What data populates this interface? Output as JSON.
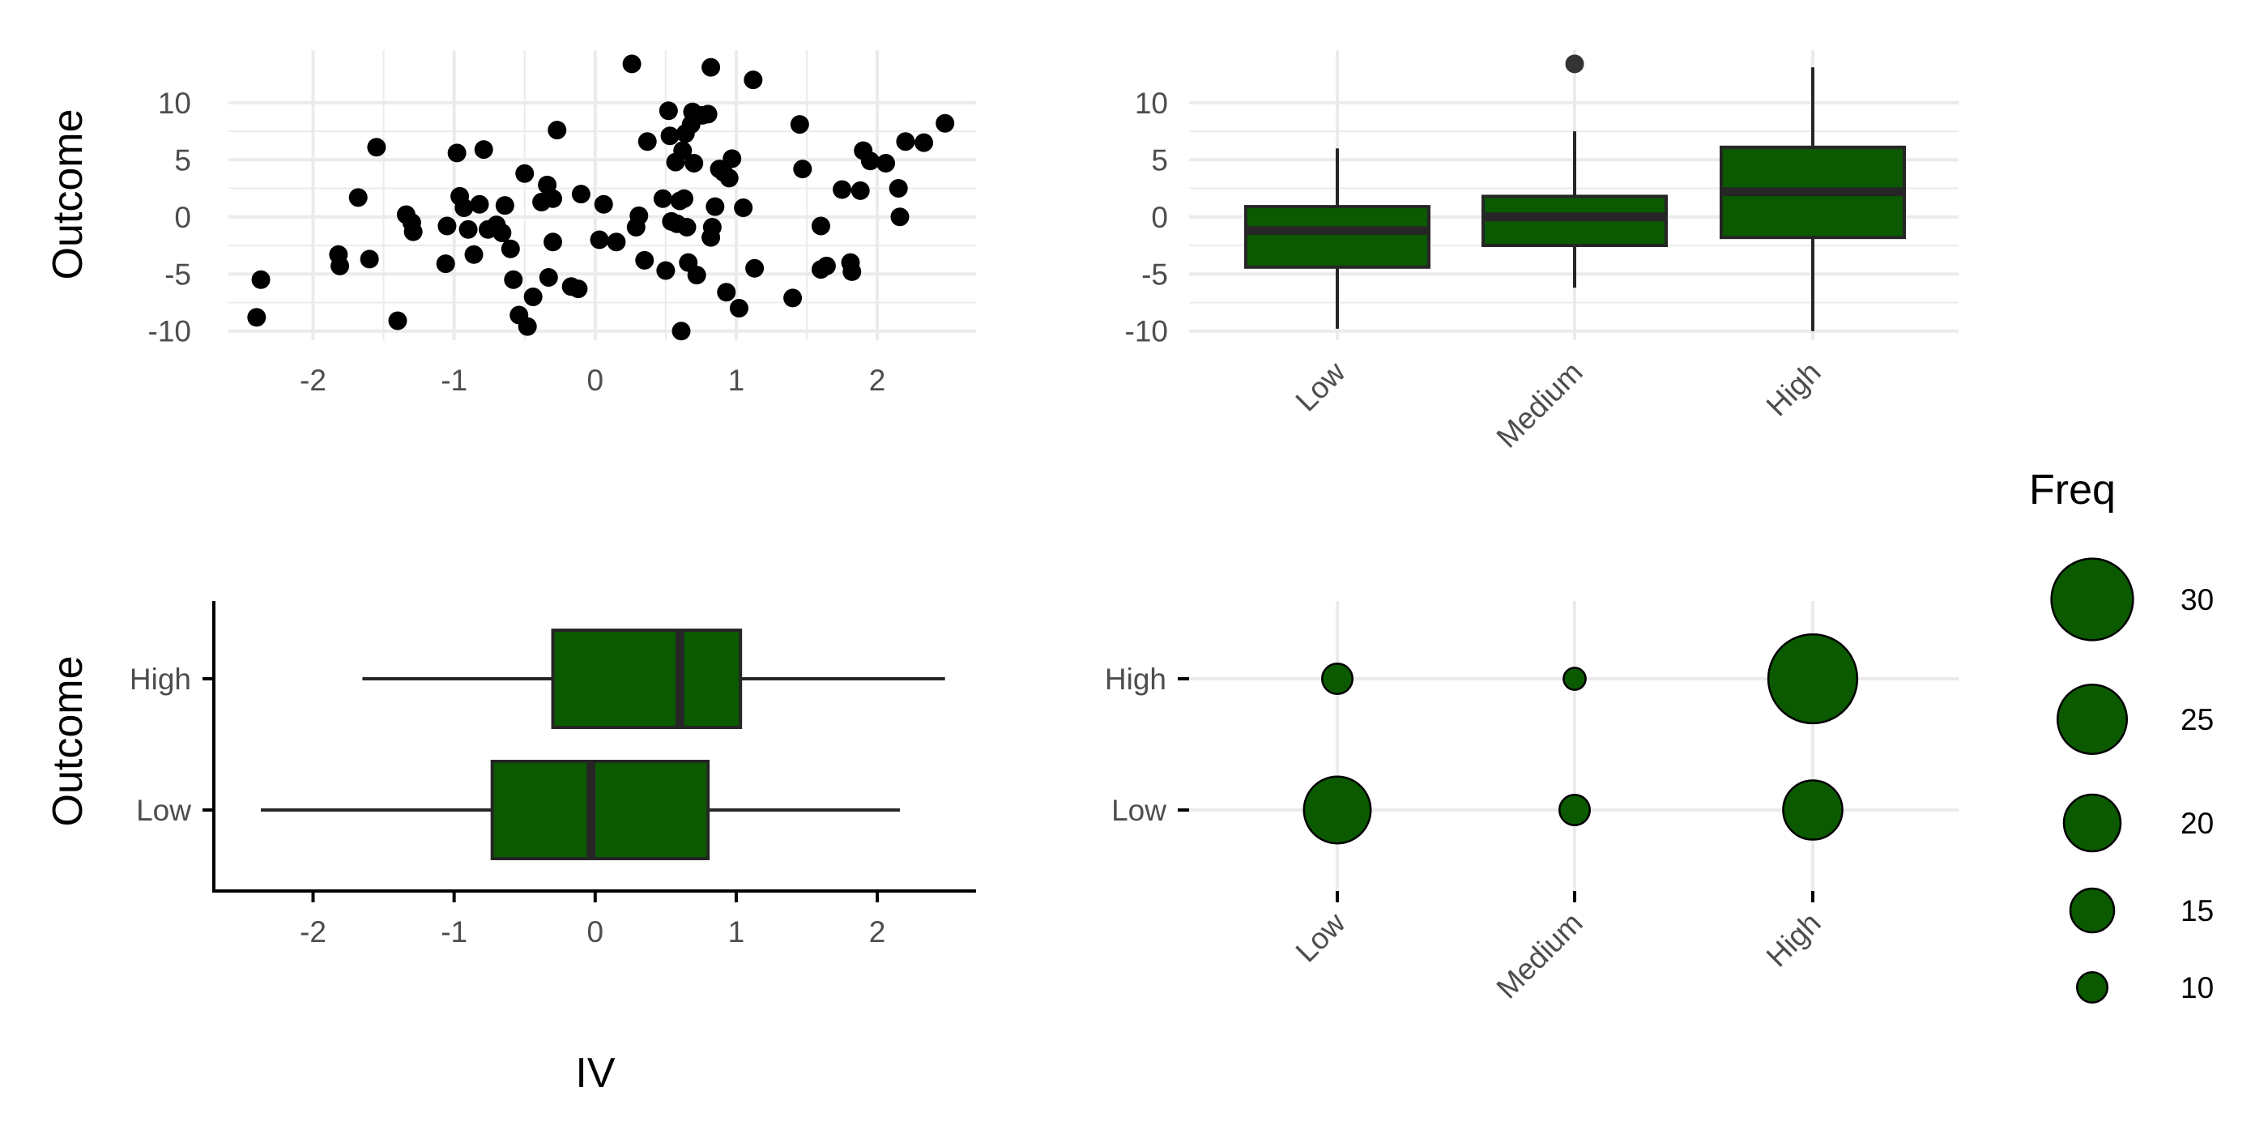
{
  "colors": {
    "fill": "#0b5a00",
    "stroke": "#262626",
    "grid": "#ebebeb",
    "point": "#000000",
    "outlier": "#333333",
    "axis": "#000000"
  },
  "chart_data": [
    {
      "id": "scatter",
      "type": "scatter",
      "xlabel": "",
      "ylabel": "Outcome",
      "xlim": [
        -2.6,
        2.7
      ],
      "ylim": [
        -10.8,
        14.6
      ],
      "xticks": [
        -2,
        -1,
        0,
        1,
        2
      ],
      "yticks": [
        -10,
        -5,
        0,
        5,
        10
      ],
      "points": [
        [
          -2.4,
          -8.8
        ],
        [
          -2.37,
          -5.5
        ],
        [
          -1.82,
          -3.3
        ],
        [
          -1.81,
          -4.3
        ],
        [
          -1.68,
          1.7
        ],
        [
          -1.6,
          -3.7
        ],
        [
          -1.55,
          6.1
        ],
        [
          -1.4,
          -9.1
        ],
        [
          -1.34,
          0.2
        ],
        [
          -1.3,
          -0.5
        ],
        [
          -1.29,
          -1.3
        ],
        [
          -1.06,
          -4.1
        ],
        [
          -1.05,
          -0.8
        ],
        [
          -0.98,
          5.6
        ],
        [
          -0.96,
          1.8
        ],
        [
          -0.93,
          0.8
        ],
        [
          -0.9,
          -1.1
        ],
        [
          -0.86,
          -3.3
        ],
        [
          -0.82,
          1.1
        ],
        [
          -0.79,
          5.9
        ],
        [
          -0.76,
          -1.1
        ],
        [
          -0.7,
          -0.7
        ],
        [
          -0.66,
          -1.4
        ],
        [
          -0.64,
          1.0
        ],
        [
          -0.6,
          -2.8
        ],
        [
          -0.58,
          -5.5
        ],
        [
          -0.54,
          -8.6
        ],
        [
          -0.5,
          3.8
        ],
        [
          -0.48,
          -9.6
        ],
        [
          -0.44,
          -7.0
        ],
        [
          -0.38,
          1.3
        ],
        [
          -0.34,
          2.8
        ],
        [
          -0.33,
          -5.3
        ],
        [
          -0.3,
          1.6
        ],
        [
          -0.3,
          -2.2
        ],
        [
          -0.27,
          7.6
        ],
        [
          -0.17,
          -6.1
        ],
        [
          -0.12,
          -6.3
        ],
        [
          -0.1,
          2.0
        ],
        [
          0.03,
          -2.0
        ],
        [
          0.06,
          1.1
        ],
        [
          0.15,
          -2.2
        ],
        [
          0.26,
          13.4
        ],
        [
          0.29,
          -0.9
        ],
        [
          0.31,
          0.1
        ],
        [
          0.35,
          -3.8
        ],
        [
          0.37,
          6.6
        ],
        [
          0.48,
          1.6
        ],
        [
          0.5,
          -4.7
        ],
        [
          0.52,
          9.3
        ],
        [
          0.53,
          7.1
        ],
        [
          0.54,
          -0.4
        ],
        [
          0.57,
          4.8
        ],
        [
          0.58,
          -0.6
        ],
        [
          0.6,
          1.4
        ],
        [
          0.61,
          -10.0
        ],
        [
          0.62,
          5.8
        ],
        [
          0.63,
          1.6
        ],
        [
          0.64,
          7.3
        ],
        [
          0.65,
          -0.9
        ],
        [
          0.66,
          -4.0
        ],
        [
          0.68,
          8.1
        ],
        [
          0.69,
          9.2
        ],
        [
          0.7,
          4.7
        ],
        [
          0.72,
          -5.1
        ],
        [
          0.76,
          8.9
        ],
        [
          0.8,
          9.0
        ],
        [
          0.82,
          13.1
        ],
        [
          0.82,
          -1.8
        ],
        [
          0.83,
          -0.9
        ],
        [
          0.85,
          0.9
        ],
        [
          0.88,
          4.2
        ],
        [
          0.91,
          3.9
        ],
        [
          0.93,
          -6.6
        ],
        [
          0.95,
          3.4
        ],
        [
          0.97,
          5.1
        ],
        [
          1.02,
          -8.0
        ],
        [
          1.05,
          0.8
        ],
        [
          1.12,
          12.0
        ],
        [
          1.13,
          -4.5
        ],
        [
          1.4,
          -7.1
        ],
        [
          1.45,
          8.1
        ],
        [
          1.47,
          4.2
        ],
        [
          1.6,
          -0.8
        ],
        [
          1.6,
          -4.6
        ],
        [
          1.64,
          -4.3
        ],
        [
          1.75,
          2.4
        ],
        [
          1.81,
          -4.0
        ],
        [
          1.82,
          -4.8
        ],
        [
          1.88,
          2.3
        ],
        [
          1.9,
          5.8
        ],
        [
          1.95,
          4.9
        ],
        [
          2.06,
          4.7
        ],
        [
          2.15,
          2.5
        ],
        [
          2.16,
          0.0
        ],
        [
          2.2,
          6.6
        ],
        [
          2.33,
          6.5
        ],
        [
          2.48,
          8.2
        ]
      ]
    },
    {
      "id": "boxplot-vertical",
      "type": "box",
      "xlabel": "",
      "ylabel": "",
      "categories": [
        "Low",
        "Medium",
        "High"
      ],
      "ylim": [
        -10.8,
        14.6
      ],
      "yticks": [
        -10,
        -5,
        0,
        5,
        10
      ],
      "boxes": [
        {
          "category": "Low",
          "whisker_low": -9.8,
          "q1": -4.4,
          "median": -1.2,
          "q3": 0.9,
          "whisker_high": 6.0,
          "outliers": []
        },
        {
          "category": "Medium",
          "whisker_low": -6.2,
          "q1": -2.5,
          "median": 0.0,
          "q3": 1.8,
          "whisker_high": 7.5,
          "outliers": [
            13.4
          ]
        },
        {
          "category": "High",
          "whisker_low": -10.0,
          "q1": -1.8,
          "median": 2.2,
          "q3": 6.1,
          "whisker_high": 13.1,
          "outliers": []
        }
      ]
    },
    {
      "id": "boxplot-horizontal",
      "type": "box",
      "xlabel": "IV",
      "ylabel": "Outcome",
      "categories": [
        "Low",
        "High"
      ],
      "xlim": [
        -2.6,
        2.7
      ],
      "xticks": [
        -2,
        -1,
        0,
        1,
        2
      ],
      "boxes": [
        {
          "category": "Low",
          "whisker_low": -2.37,
          "q1": -0.73,
          "median": -0.03,
          "q3": 0.8,
          "whisker_high": 2.16,
          "outliers": []
        },
        {
          "category": "High",
          "whisker_low": -1.65,
          "q1": -0.3,
          "median": 0.6,
          "q3": 1.03,
          "whisker_high": 2.48,
          "outliers": []
        }
      ]
    },
    {
      "id": "bubble",
      "type": "bubble",
      "xlabel": "",
      "ylabel": "",
      "xcategories": [
        "Low",
        "Medium",
        "High"
      ],
      "ycategories": [
        "Low",
        "High"
      ],
      "cells": [
        {
          "x": "Low",
          "y": "High",
          "freq": 10
        },
        {
          "x": "Medium",
          "y": "High",
          "freq": 7
        },
        {
          "x": "High",
          "y": "High",
          "freq": 33
        },
        {
          "x": "Low",
          "y": "Low",
          "freq": 24
        },
        {
          "x": "Medium",
          "y": "Low",
          "freq": 10
        },
        {
          "x": "High",
          "y": "Low",
          "freq": 21
        }
      ],
      "legend": {
        "title": "Freq",
        "position": "right",
        "entries": [
          30,
          25,
          20,
          15,
          10
        ]
      }
    }
  ]
}
